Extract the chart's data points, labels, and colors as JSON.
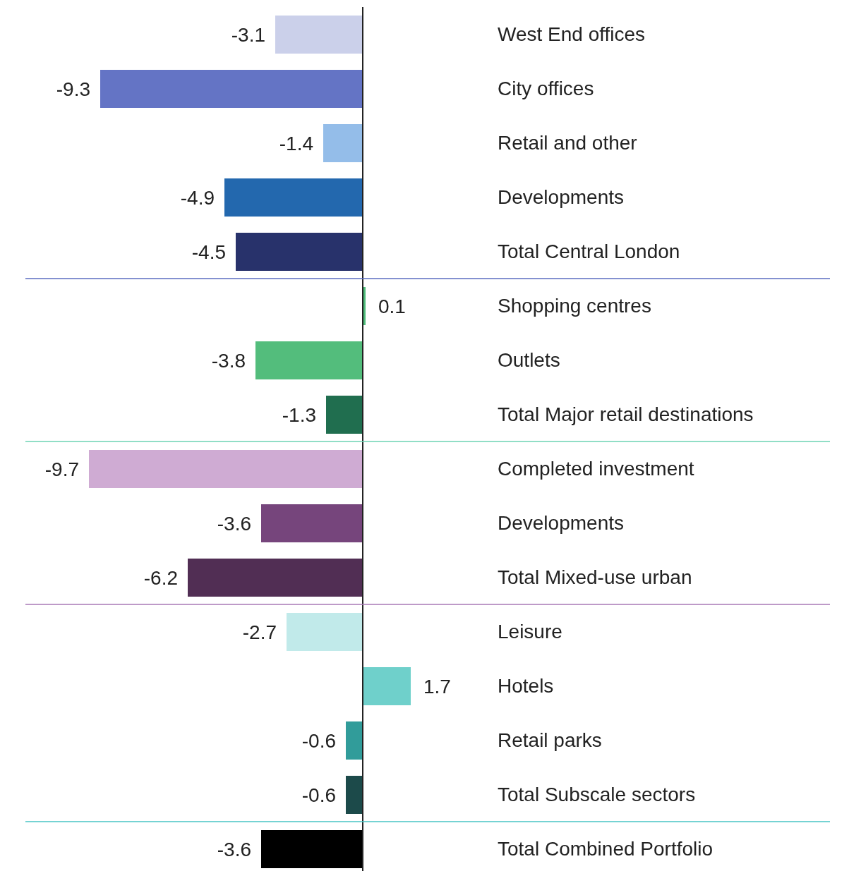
{
  "chart_data": {
    "type": "bar",
    "orientation": "horizontal",
    "categories": [
      "West End offices",
      "City offices",
      "Retail and other",
      "Developments",
      "Total Central London",
      "Shopping centres",
      "Outlets",
      "Total Major retail destinations",
      "Completed investment",
      "Developments",
      "Total Mixed-use urban",
      "Leisure",
      "Hotels",
      "Retail parks",
      "Total Subscale sectors",
      "Total Combined Portfolio"
    ],
    "values": [
      -3.1,
      -9.3,
      -1.4,
      -4.9,
      -4.5,
      0.1,
      -3.8,
      -1.3,
      -9.7,
      -3.6,
      -6.2,
      -2.7,
      1.7,
      -0.6,
      -0.6,
      -3.6
    ],
    "colors": [
      "#cbd0ea",
      "#6474c5",
      "#94bde9",
      "#2368ae",
      "#28326b",
      "#4fbd7a",
      "#53bd7c",
      "#206e4f",
      "#cfabd3",
      "#76457c",
      "#512e54",
      "#c1eaea",
      "#6fd0cb",
      "#319c9a",
      "#1c4a4a",
      "#000000"
    ],
    "data_labels": true,
    "ref_lines": [
      {
        "axis": "y",
        "value": "Total Central London",
        "color": "#5b6cc0"
      },
      {
        "axis": "y",
        "value": "Total Major retail destinations",
        "color": "#6dd3b3"
      },
      {
        "axis": "y",
        "value": "Total Mixed-use urban",
        "color": "#a879b6"
      },
      {
        "axis": "y",
        "value": "Total Subscale sectors",
        "color": "#47c4c4"
      }
    ]
  }
}
